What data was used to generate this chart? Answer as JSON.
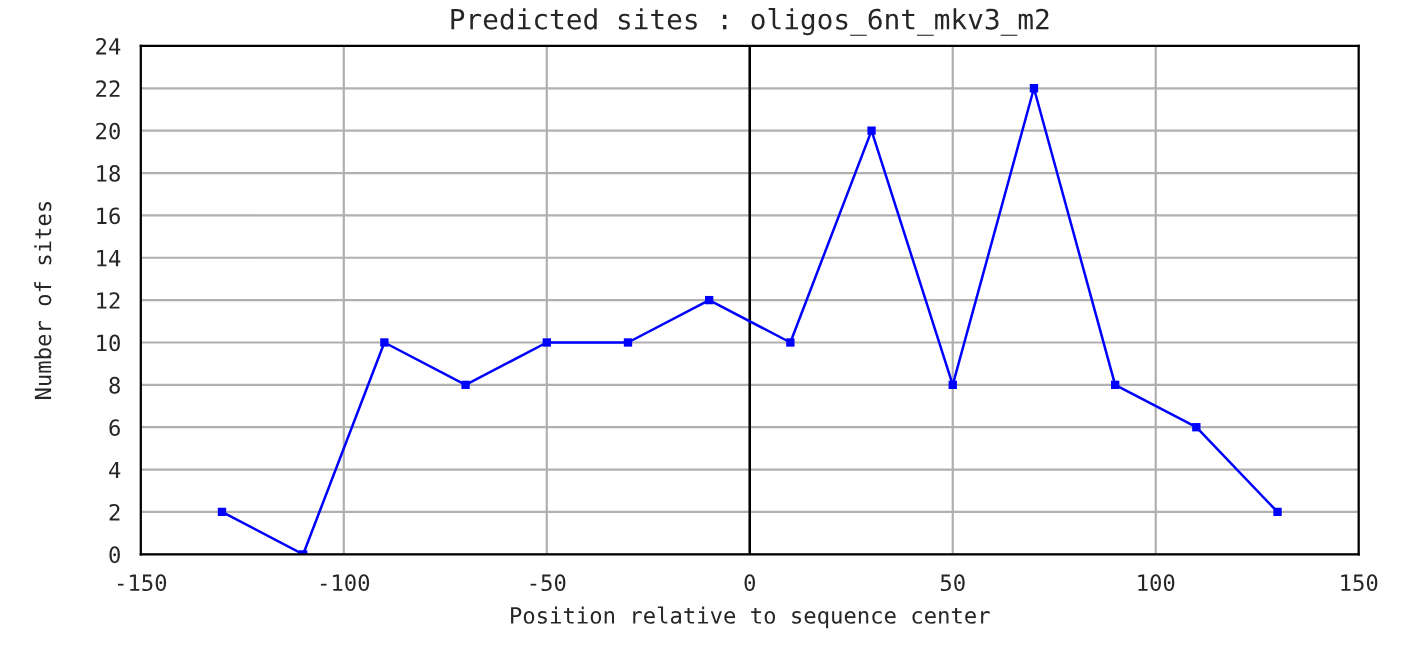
{
  "chart_data": {
    "type": "line",
    "title": "Predicted sites : oligos_6nt_mkv3_m2",
    "xlabel": "Position relative to sequence center",
    "ylabel": "Number of sites",
    "series": [
      {
        "color": "#0000ff",
        "x": [
          -130,
          -110,
          -90,
          -70,
          -50,
          -30,
          -10,
          10,
          30,
          50,
          70,
          90,
          110,
          130
        ],
        "values": [
          2,
          0,
          10,
          8,
          10,
          10,
          12,
          10,
          20,
          8,
          22,
          8,
          6,
          2
        ]
      }
    ],
    "xlim": [
      -150,
      150
    ],
    "xticks": [
      -150,
      -100,
      -50,
      0,
      50,
      100,
      150
    ],
    "ylim": [
      0,
      24
    ],
    "yticks": [
      0,
      2,
      4,
      6,
      8,
      10,
      12,
      14,
      16,
      18,
      20,
      22,
      24
    ],
    "ref_lines": [
      {
        "axis": "x",
        "value": 0,
        "color": "#000000"
      }
    ],
    "grid": true,
    "marker": "square",
    "line_style": "solid"
  }
}
